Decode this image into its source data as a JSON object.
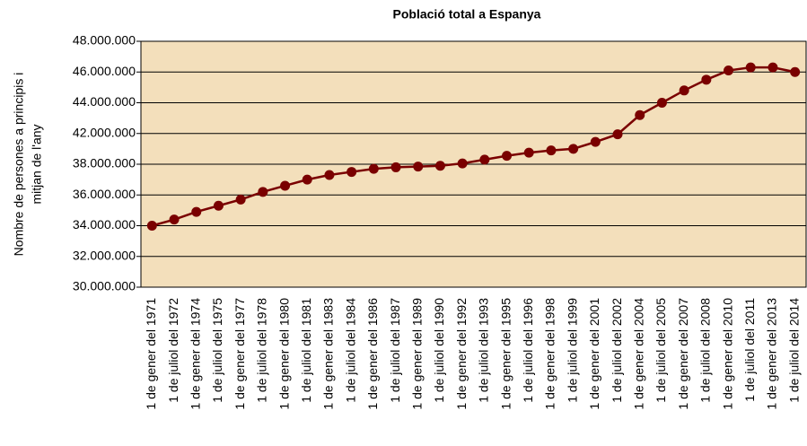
{
  "chart_data": {
    "type": "line",
    "title": "Població total a Espanya",
    "ylabel": [
      "Nombre de persones a principis i",
      "mitjan de l'any"
    ],
    "categories": [
      "1 de gener del 1971",
      "1 de juliol del 1972",
      "1 de gener del 1974",
      "1 de juliol del 1975",
      "1 de gener del 1977",
      "1 de juliol del 1978",
      "1 de gener del 1980",
      "1 de juliol del 1981",
      "1 de gener del 1983",
      "1 de juliol del 1984",
      "1 de gener del 1986",
      "1 de juliol del 1987",
      "1 de gener del 1989",
      "1 de juliol del 1990",
      "1 de gener del 1992",
      "1 de juliol del 1993",
      "1 de gener del 1995",
      "1 de juliol del 1996",
      "1 de gener del 1998",
      "1 de juliol del 1999",
      "1 de gener del 2001",
      "1 de juliol del 2002",
      "1 de gener del 2004",
      "1 de juliol del 2005",
      "1 de gener del 2007",
      "1 de juliol del 2008",
      "1 de gener del 2010",
      "1 de juliol del 2011",
      "1 de gener del 2013",
      "1 de juliol del 2014"
    ],
    "series": [
      {
        "color": "#7a0000",
        "values": [
          34000000,
          34400000,
          34900000,
          35300000,
          35700000,
          36200000,
          36600000,
          37000000,
          37300000,
          37500000,
          37700000,
          37800000,
          37850000,
          37900000,
          38100000,
          38600000,
          39100000,
          39500000,
          39800000,
          40000000,
          40900000,
          41900000,
          43200000,
          44000000,
          44800000,
          45500000,
          46100000,
          46300000,
          46300000,
          46000000
        ]
      }
    ],
    "ylim": [
      30000000,
      48000000
    ],
    "yticks": [
      {
        "value": 30000000,
        "label": "30.000.000"
      },
      {
        "value": 32000000,
        "label": "32.000.000"
      },
      {
        "value": 34000000,
        "label": "34.000.000"
      },
      {
        "value": 36000000,
        "label": "36.000.000"
      },
      {
        "value": 38000000,
        "label": "38.000.000"
      },
      {
        "value": 42000000,
        "label": "42.000.000"
      },
      {
        "value": 44000000,
        "label": "44.000.000"
      },
      {
        "value": 46000000,
        "label": "46.000.000"
      },
      {
        "value": 48000000,
        "label": "48.000.000"
      }
    ],
    "grid": true,
    "plot_background": "#f3dfbb"
  }
}
